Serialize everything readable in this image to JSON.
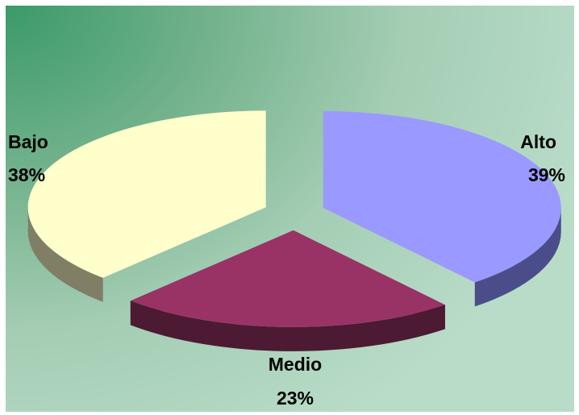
{
  "chart_data": {
    "type": "pie",
    "style": "3d-exploded",
    "slices": [
      {
        "name": "Alto",
        "value": 39,
        "label": "39%",
        "color": "#9999ff",
        "side_color": "#4a4d8a"
      },
      {
        "name": "Medio",
        "value": 23,
        "label": "23%",
        "color": "#993366",
        "side_color": "#4c1a32"
      },
      {
        "name": "Bajo",
        "value": 38,
        "label": "38%",
        "color": "#ffffcc",
        "side_color": "#807f66"
      }
    ],
    "title": "",
    "legend": "none",
    "background": "green-gradient"
  }
}
